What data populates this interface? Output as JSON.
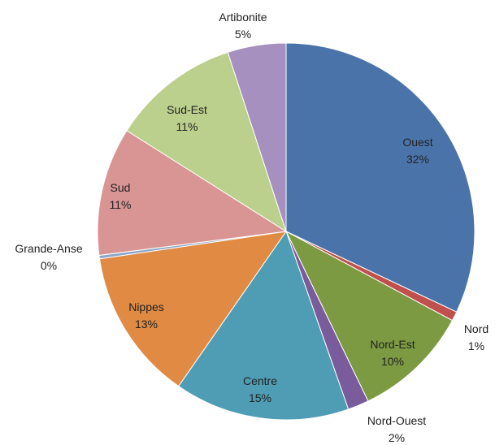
{
  "chart_data": {
    "type": "pie",
    "slices": [
      {
        "name": "Ouest",
        "label": "32%",
        "value": 32,
        "color": "#4a74a9"
      },
      {
        "name": "Nord",
        "label": "1%",
        "value": 0.8,
        "color": "#c0504d"
      },
      {
        "name": "Nord-Est",
        "label": "10%",
        "value": 10,
        "color": "#7c9a41"
      },
      {
        "name": "Nord-Ouest",
        "label": "2%",
        "value": 1.8,
        "color": "#7a5b9c"
      },
      {
        "name": "Centre",
        "label": "15%",
        "value": 15,
        "color": "#4f9cb5"
      },
      {
        "name": "Nippes",
        "label": "13%",
        "value": 13,
        "color": "#e08a43"
      },
      {
        "name": "Grande-Anse",
        "label": "0%",
        "value": 0.3,
        "color": "#8da6c8"
      },
      {
        "name": "Sud",
        "label": "11%",
        "value": 11,
        "color": "#d89593"
      },
      {
        "name": "Sud-Est",
        "label": "11%",
        "value": 11,
        "color": "#bcd08d"
      },
      {
        "name": "Artibonite",
        "label": "5%",
        "value": 5,
        "color": "#a690c0"
      }
    ]
  }
}
